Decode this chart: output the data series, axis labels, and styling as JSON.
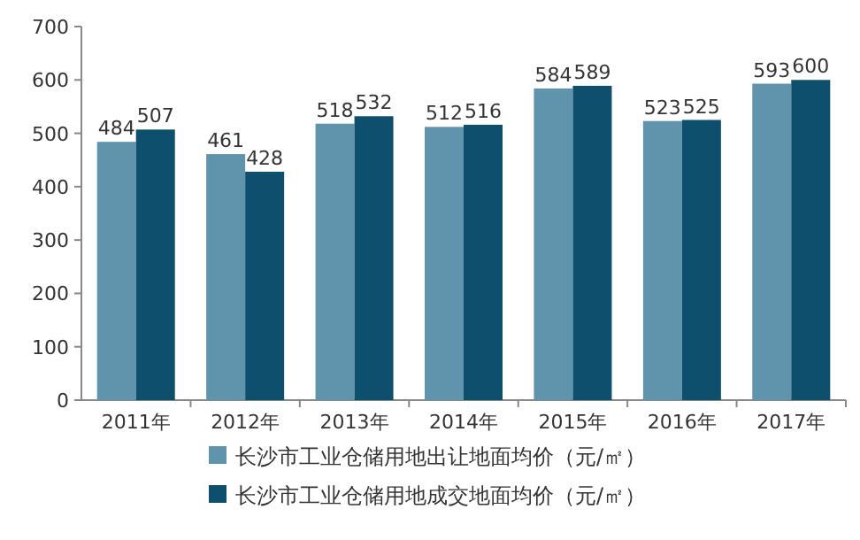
{
  "chart_data": {
    "type": "bar",
    "categories": [
      "2011年",
      "2012年",
      "2013年",
      "2014年",
      "2015年",
      "2016年",
      "2017年"
    ],
    "series": [
      {
        "name": "长沙市工业仓储用地出让地面均价（元/㎡）",
        "color": "#6094ad",
        "values": [
          484,
          461,
          518,
          512,
          584,
          523,
          593
        ]
      },
      {
        "name": "长沙市工业仓储用地成交地面均价（元/㎡）",
        "color": "#0d4f6c",
        "values": [
          507,
          428,
          532,
          516,
          589,
          525,
          600
        ]
      }
    ],
    "ylim": [
      0,
      700
    ],
    "yticks": [
      0,
      100,
      200,
      300,
      400,
      500,
      600,
      700
    ],
    "data_labels": true,
    "legend": "bottom"
  }
}
